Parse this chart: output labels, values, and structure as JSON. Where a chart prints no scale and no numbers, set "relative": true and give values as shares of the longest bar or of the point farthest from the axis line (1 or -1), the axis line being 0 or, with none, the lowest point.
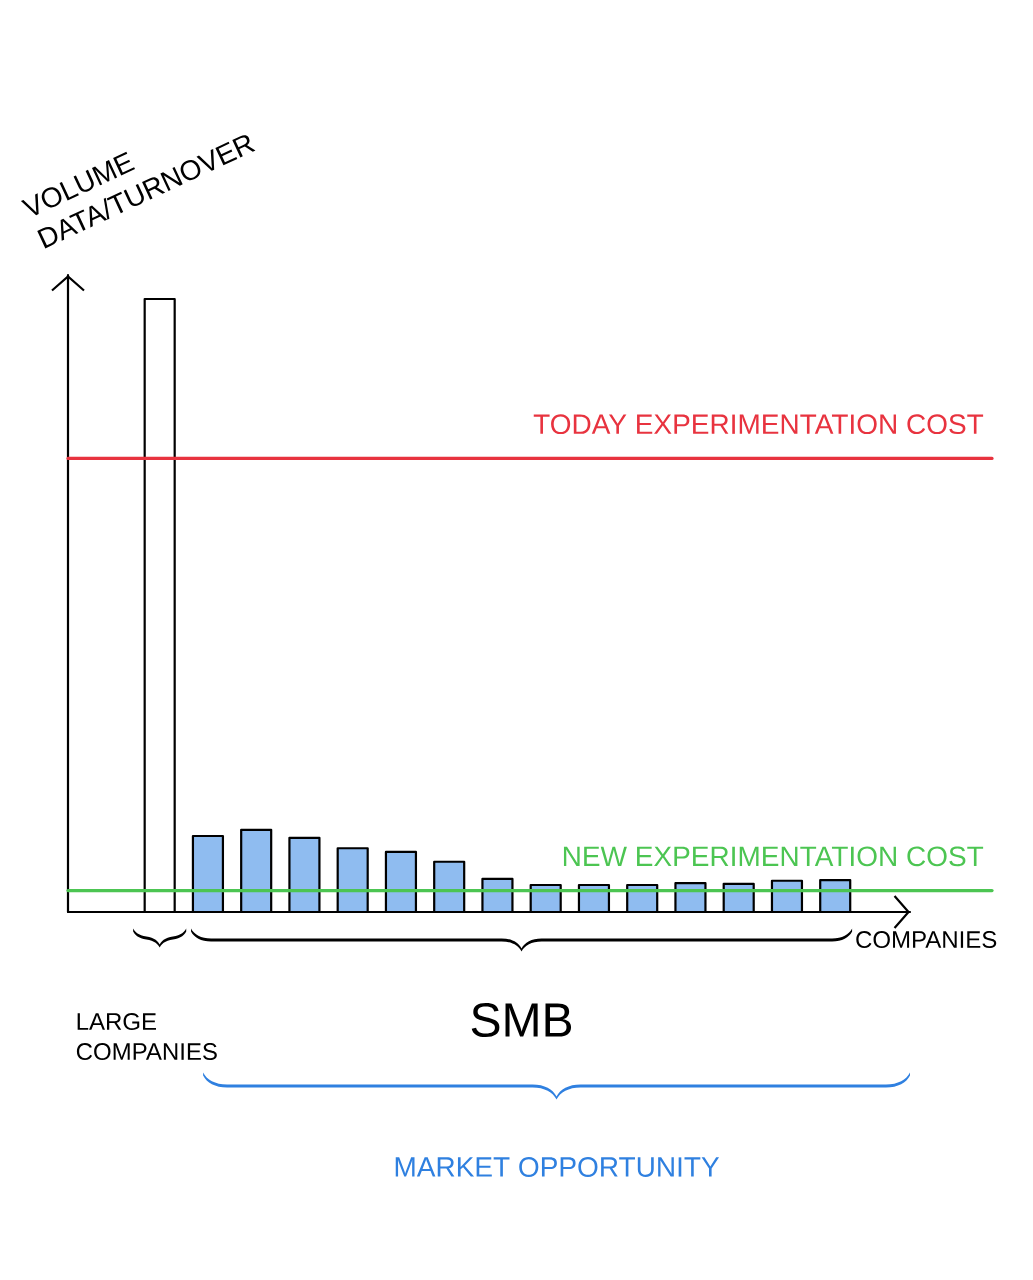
{
  "chart_data": {
    "type": "bar",
    "relative": true,
    "xlabel": "COMPANIES",
    "ylabel": "VOLUME DATA/TURNOVER",
    "categories": [
      null,
      null,
      null,
      null,
      null,
      null,
      null,
      null,
      null,
      null,
      null,
      null,
      null,
      null,
      null
    ],
    "values": [
      1,
      0.124,
      0.134,
      0.121,
      0.104,
      0.098,
      0.082,
      0.054,
      0.044,
      0.044,
      0.044,
      0.047,
      0.046,
      0.051,
      0.052
    ],
    "colors": [
      "#ffffff",
      "#8fbcf0",
      "#8fbcf0",
      "#8fbcf0",
      "#8fbcf0",
      "#8fbcf0",
      "#8fbcf0",
      "#8fbcf0",
      "#8fbcf0",
      "#8fbcf0",
      "#8fbcf0",
      "#8fbcf0",
      "#8fbcf0",
      "#8fbcf0",
      "#8fbcf0"
    ],
    "ref_lines": [
      {
        "axis": "y",
        "value": 0.74,
        "label": "TODAY EXPERIMENTATION COST",
        "color": "#e8333f"
      },
      {
        "axis": "y",
        "value": 0.035,
        "label": "NEW EXPERIMENTATION COST",
        "color": "#4cc552"
      }
    ],
    "annotations": [
      "LARGE COMPANIES",
      "SMB",
      "MARKET OPPORTUNITY"
    ]
  }
}
